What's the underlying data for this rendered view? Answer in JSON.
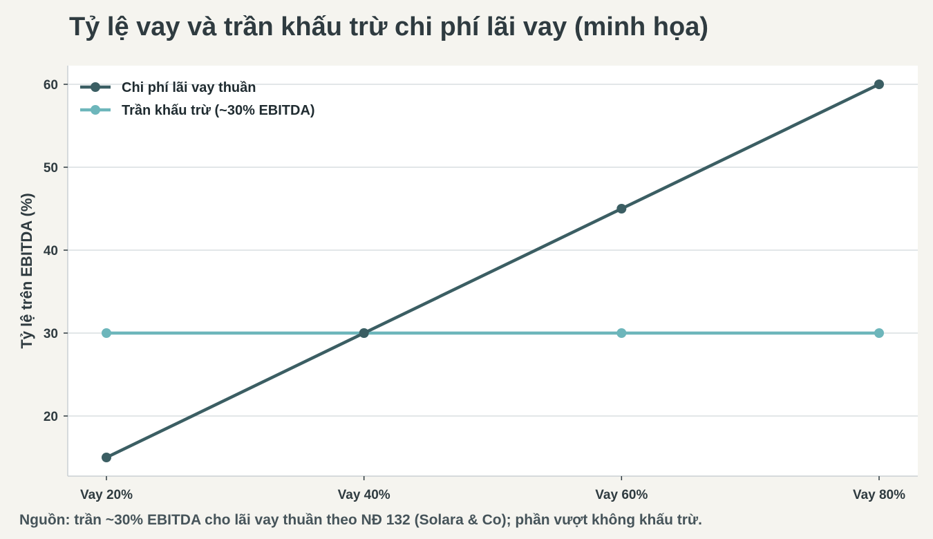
{
  "title": "Tỷ lệ vay và trần khấu trừ chi phí lãi vay (minh họa)",
  "source": "Nguồn: trần ~30% EBITDA cho lãi vay thuần theo NĐ 132 (Solara & Co); phần vượt không khấu trừ.",
  "colors": {
    "background": "#f5f4ef",
    "plot_background": "#ffffff",
    "grid": "#d9dde0",
    "series_dark": "#3b5e63",
    "series_light": "#6db6bb"
  },
  "chart_data": {
    "type": "line",
    "categories": [
      "Vay 20%",
      "Vay 40%",
      "Vay 60%",
      "Vay 80%"
    ],
    "series": [
      {
        "name": "Chi phí lãi vay thuần",
        "values": [
          15,
          30,
          45,
          60
        ],
        "color": "#3b5e63"
      },
      {
        "name": "Trần khấu trừ (~30% EBITDA)",
        "values": [
          30,
          30,
          30,
          30
        ],
        "color": "#6db6bb"
      }
    ],
    "ylabel": "Tỷ lệ trên EBITDA (%)",
    "xlabel": "",
    "ylim": [
      12.75,
      62.25
    ],
    "yticks": [
      20,
      30,
      40,
      50,
      60
    ],
    "grid": "horizontal",
    "legend": "top-left"
  }
}
